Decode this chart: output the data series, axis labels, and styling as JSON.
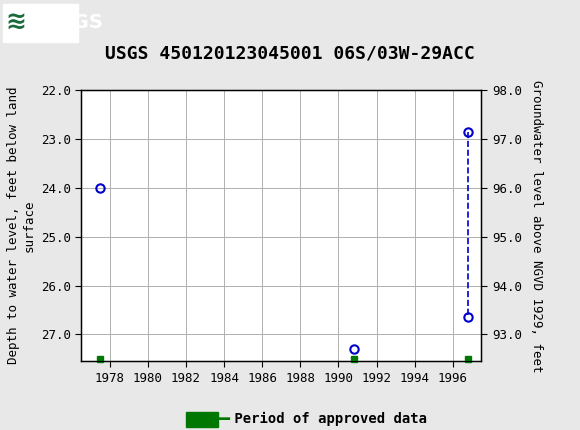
{
  "title": "USGS 450120123045001 06S/03W-29ACC",
  "ylabel_left": "Depth to water level, feet below land\nsurface",
  "ylabel_right": "Groundwater level above NGVD 1929, feet",
  "xlim": [
    1976.5,
    1997.5
  ],
  "ylim_left": [
    22.0,
    27.55
  ],
  "ylim_right": [
    98.0,
    92.45
  ],
  "yticks_left": [
    22.0,
    23.0,
    24.0,
    25.0,
    26.0,
    27.0
  ],
  "yticks_right": [
    98.0,
    97.0,
    96.0,
    95.0,
    94.0,
    93.0
  ],
  "xticks": [
    1978,
    1980,
    1982,
    1984,
    1986,
    1988,
    1990,
    1992,
    1994,
    1996
  ],
  "data_points": [
    {
      "year": 1977.5,
      "depth": 24.0
    },
    {
      "year": 1990.8,
      "depth": 27.3
    },
    {
      "year": 1996.8,
      "depth": 22.85
    },
    {
      "year": 1996.8,
      "depth": 26.65
    }
  ],
  "dashed_line_x": [
    1996.8,
    1996.8
  ],
  "dashed_line_y": [
    22.85,
    26.65
  ],
  "approved_data": [
    {
      "year": 1977.5,
      "depth": 27.5
    },
    {
      "year": 1990.8,
      "depth": 27.5
    },
    {
      "year": 1996.8,
      "depth": 27.5
    }
  ],
  "point_color": "#0000cc",
  "line_color": "#0000cc",
  "approved_color": "#007700",
  "header_bg_color": "#1a6b3c",
  "background_color": "#e8e8e8",
  "plot_bg_color": "#ffffff",
  "grid_color": "#b0b0b0",
  "title_fontsize": 13,
  "axis_label_fontsize": 9,
  "tick_fontsize": 9,
  "legend_fontsize": 10
}
